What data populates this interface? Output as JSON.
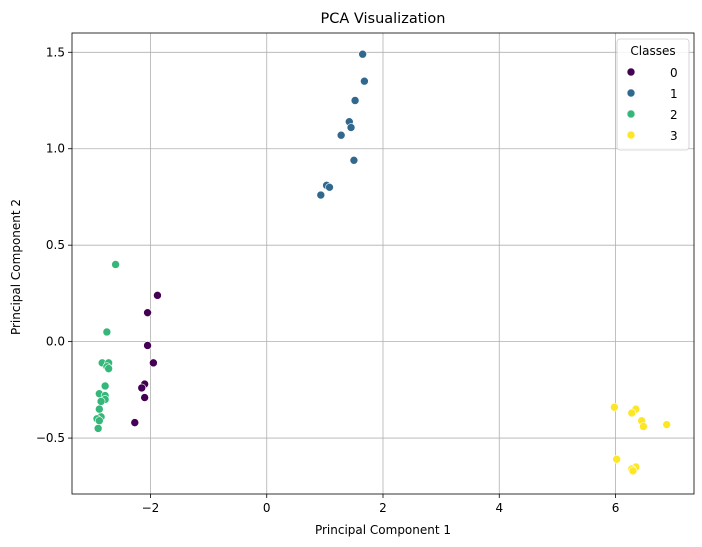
{
  "chart_data": {
    "type": "scatter",
    "title": "PCA Visualization",
    "xlabel": "Principal Component 1",
    "ylabel": "Principal Component 2",
    "xlim": [
      -3.35,
      7.35
    ],
    "ylim": [
      -0.79,
      1.6
    ],
    "x_ticks": [
      -2,
      0,
      2,
      4,
      6
    ],
    "y_ticks": [
      -0.5,
      0.0,
      0.5,
      1.0,
      1.5
    ],
    "grid": true,
    "legend": {
      "title": "Classes",
      "placement": "top-right"
    },
    "series": [
      {
        "name": "0",
        "color": "#440154",
        "points": [
          [
            -1.88,
            0.24
          ],
          [
            -2.05,
            0.15
          ],
          [
            -2.05,
            -0.02
          ],
          [
            -1.95,
            -0.11
          ],
          [
            -2.1,
            -0.22
          ],
          [
            -2.15,
            -0.24
          ],
          [
            -2.1,
            -0.29
          ],
          [
            -2.27,
            -0.42
          ]
        ]
      },
      {
        "name": "1",
        "color": "#31688e",
        "points": [
          [
            1.65,
            1.49
          ],
          [
            1.68,
            1.35
          ],
          [
            1.52,
            1.25
          ],
          [
            1.42,
            1.14
          ],
          [
            1.45,
            1.11
          ],
          [
            1.28,
            1.07
          ],
          [
            1.5,
            0.94
          ],
          [
            1.03,
            0.81
          ],
          [
            1.08,
            0.8
          ],
          [
            0.93,
            0.76
          ]
        ]
      },
      {
        "name": "2",
        "color": "#35b779",
        "points": [
          [
            -2.6,
            0.4
          ],
          [
            -2.75,
            0.05
          ],
          [
            -2.83,
            -0.11
          ],
          [
            -2.72,
            -0.11
          ],
          [
            -2.75,
            -0.13
          ],
          [
            -2.72,
            -0.14
          ],
          [
            -2.78,
            -0.23
          ],
          [
            -2.88,
            -0.27
          ],
          [
            -2.78,
            -0.28
          ],
          [
            -2.78,
            -0.3
          ],
          [
            -2.85,
            -0.31
          ],
          [
            -2.88,
            -0.35
          ],
          [
            -2.85,
            -0.39
          ],
          [
            -2.92,
            -0.4
          ],
          [
            -2.88,
            -0.41
          ],
          [
            -2.9,
            -0.45
          ]
        ]
      },
      {
        "name": "3",
        "color": "#fde725",
        "points": [
          [
            5.98,
            -0.34
          ],
          [
            6.35,
            -0.35
          ],
          [
            6.28,
            -0.37
          ],
          [
            6.45,
            -0.41
          ],
          [
            6.48,
            -0.44
          ],
          [
            6.88,
            -0.43
          ],
          [
            6.02,
            -0.61
          ],
          [
            6.35,
            -0.65
          ],
          [
            6.28,
            -0.66
          ],
          [
            6.3,
            -0.67
          ]
        ]
      }
    ]
  }
}
